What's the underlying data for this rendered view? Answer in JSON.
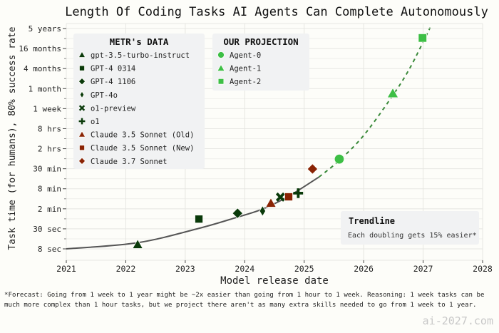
{
  "chart_data": {
    "type": "scatter",
    "title": "Length Of Coding Tasks AI Agents Can Complete Autonomously",
    "xlabel": "Model release date",
    "ylabel": "Task time (for humans), 80% success rate",
    "xlim": [
      2021,
      2028
    ],
    "x_ticks": [
      "2021",
      "2022",
      "2023",
      "2024",
      "2025",
      "2026",
      "2027",
      "2028"
    ],
    "y_scale": "log",
    "y_unit": "seconds",
    "y_ticks": [
      {
        "label": "8 sec",
        "seconds": 8
      },
      {
        "label": "30 sec",
        "seconds": 30
      },
      {
        "label": "2 min",
        "seconds": 120
      },
      {
        "label": "8 min",
        "seconds": 480
      },
      {
        "label": "30 min",
        "seconds": 1800
      },
      {
        "label": "2 hrs",
        "seconds": 7200
      },
      {
        "label": "8 hrs",
        "seconds": 28800
      },
      {
        "label": "1 week",
        "seconds": 144000
      },
      {
        "label": "1 month",
        "seconds": 600000
      },
      {
        "label": "4 months",
        "seconds": 2400000
      },
      {
        "label": "16 months",
        "seconds": 9600000
      },
      {
        "label": "5 years",
        "seconds": 36000000
      }
    ],
    "grid": true,
    "legends": [
      {
        "title": "METR's DATA",
        "placement": "top-left"
      },
      {
        "title": "OUR PROJECTION",
        "placement": "top-center"
      }
    ],
    "series": [
      {
        "name": "gpt-3.5-turbo-instruct",
        "group": "metr",
        "marker": "triangle",
        "color": "#0a3a0a",
        "x": 2022.2,
        "y": 10.6
      },
      {
        "name": "GPT-4 0314",
        "group": "metr",
        "marker": "square",
        "color": "#0a3a0a",
        "x": 2023.23,
        "y": 59
      },
      {
        "name": "GPT-4 1106",
        "group": "metr",
        "marker": "diamond",
        "color": "#0a3a0a",
        "x": 2023.88,
        "y": 88
      },
      {
        "name": "GPT-4o",
        "group": "metr",
        "marker": "thin-diamond",
        "color": "#0a3a0a",
        "x": 2024.3,
        "y": 103
      },
      {
        "name": "o1-preview",
        "group": "metr",
        "marker": "x",
        "color": "#0a3a0a",
        "x": 2024.6,
        "y": 270
      },
      {
        "name": "o1",
        "group": "metr",
        "marker": "plus",
        "color": "#0a3a0a",
        "x": 2024.9,
        "y": 354
      },
      {
        "name": "Claude 3.5 Sonnet (Old)",
        "group": "metr",
        "marker": "triangle",
        "color": "#8a2304",
        "x": 2024.44,
        "y": 177
      },
      {
        "name": "Claude 3.5 Sonnet (New)",
        "group": "metr",
        "marker": "square",
        "color": "#8a2304",
        "x": 2024.74,
        "y": 275
      },
      {
        "name": "Claude 3.7 Sonnet",
        "group": "metr",
        "marker": "diamond",
        "color": "#8a2304",
        "x": 2025.14,
        "y": 1770
      },
      {
        "name": "Agent-0",
        "group": "projection",
        "marker": "circle",
        "color": "#3dbf45",
        "x": 2025.59,
        "y": 3500
      },
      {
        "name": "Agent-1",
        "group": "projection",
        "marker": "triangle",
        "color": "#3dbf45",
        "x": 2026.49,
        "y": 426000
      },
      {
        "name": "Agent-2",
        "group": "projection",
        "marker": "square",
        "color": "#3dbf45",
        "x": 2026.99,
        "y": 19300000
      }
    ],
    "trendline": {
      "solid_color": "#555555",
      "dashed_color": "#3a8a3a",
      "solid": [
        [
          2021.0,
          8
        ],
        [
          2022.2,
          12
        ],
        [
          2023.23,
          31
        ],
        [
          2023.86,
          66
        ],
        [
          2024.3,
          118
        ],
        [
          2024.74,
          287
        ],
        [
          2025.25,
          1046
        ]
      ],
      "dashed": [
        [
          2025.25,
          1046
        ],
        [
          2025.59,
          3190
        ],
        [
          2026.0,
          18000
        ],
        [
          2026.48,
          348000
        ],
        [
          2026.78,
          2540000
        ],
        [
          2027.08,
          28300000
        ],
        [
          2027.11,
          36000000
        ]
      ]
    },
    "annotation": {
      "title": "Trendline",
      "text": "Each doubling gets 15% easier*"
    }
  },
  "footnote": "*Forecast: Going from 1 week to 1 year might be ~2x easier than going from 1 hour to 1 week. Reasoning: 1 week tasks can be\nmuch more complex than 1 hour tasks, but we project there aren't as many extra skills needed to go from 1 week to 1 year.",
  "watermark": "ai-2027.com"
}
